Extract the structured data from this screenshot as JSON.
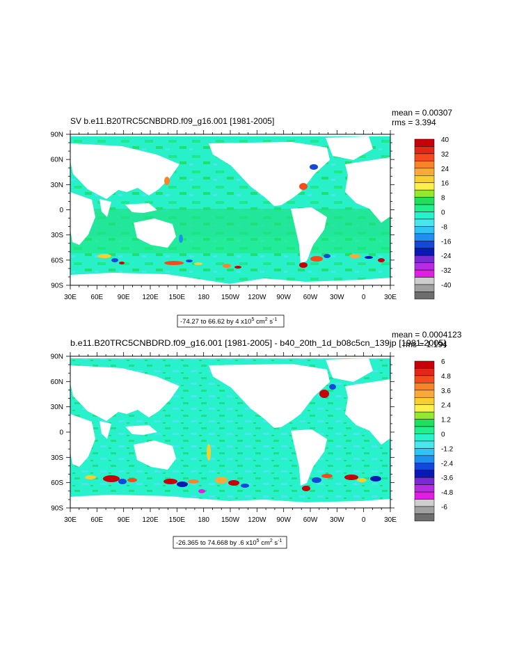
{
  "panels": [
    {
      "title": "SV b.e11.B20TRC5CNBDRD.f09_g16.001 [1981-2005]",
      "mean_text": "mean = 0.00307",
      "rms_text": "rms = 3.394",
      "contour_info": {
        "prefix": "-74.27 to 66.62 by 4 x10",
        "exponent": "5",
        "mid": " cm",
        "exponent2": "2",
        "suffix": " s",
        "exponent3": "-1"
      }
    },
    {
      "title": "b.e11.B20TRC5CNBDRD.f09_g16.001 [1981-2005] - b40_20th_1d_b08c5cn_139jp [1981-2005]",
      "mean_text": "mean = 0.0004123",
      "rms_text": "rms = 1.194",
      "contour_info": {
        "prefix": "-26.365 to 74.668 by .6 x10",
        "exponent": "5",
        "mid": " cm",
        "exponent2": "2",
        "suffix": " s",
        "exponent3": "-1"
      }
    }
  ],
  "chart_data": [
    {
      "type": "heatmap",
      "title": "SV b.e11.B20TRC5CNBDRD.f09_g16.001 [1981-2005]",
      "x_ticks": [
        "30E",
        "60E",
        "90E",
        "120E",
        "150E",
        "180",
        "150W",
        "120W",
        "90W",
        "60W",
        "30W",
        "0",
        "30E"
      ],
      "y_ticks": [
        "90N",
        "60N",
        "30N",
        "0",
        "30S",
        "60S",
        "90S"
      ],
      "xlim": [
        30,
        390
      ],
      "ylim": [
        -90,
        90
      ],
      "colorbar_labels": [
        "40",
        "32",
        "24",
        "16",
        "8",
        "0",
        "-8",
        "-16",
        "-24",
        "-32",
        "-40"
      ],
      "colorbar_colors": [
        "#c8000a",
        "#e22814",
        "#f44a1c",
        "#f8842a",
        "#f9a93a",
        "#f6d02e",
        "#fcf04a",
        "#94e82e",
        "#1ee05a",
        "#1ef08c",
        "#28f2cc",
        "#4ae6f0",
        "#30c4f4",
        "#1e90f0",
        "#1448d8",
        "#0a18b4",
        "#7a2ad2",
        "#b42ee0",
        "#e21ee2",
        "#cecece",
        "#a0a0a0",
        "#6e6e6e"
      ],
      "stats": {
        "mean": 0.00307,
        "rms": 3.394
      },
      "contour_range": {
        "min": -74.27,
        "max": 66.62,
        "interval": 4
      }
    },
    {
      "type": "heatmap",
      "title": "b.e11.B20TRC5CNBDRD.f09_g16.001 [1981-2005] - b40_20th_1d_b08c5cn_139jp [1981-2005]",
      "x_ticks": [
        "30E",
        "60E",
        "90E",
        "120E",
        "150E",
        "180",
        "150W",
        "120W",
        "90W",
        "60W",
        "30W",
        "0",
        "30E"
      ],
      "y_ticks": [
        "90N",
        "60N",
        "30N",
        "0",
        "30S",
        "60S",
        "90S"
      ],
      "xlim": [
        30,
        390
      ],
      "ylim": [
        -90,
        90
      ],
      "colorbar_labels": [
        "6",
        "4.8",
        "3.6",
        "2.4",
        "1.2",
        "0",
        "-1.2",
        "-2.4",
        "-3.6",
        "-4.8",
        "-6"
      ],
      "colorbar_colors": [
        "#c8000a",
        "#e22814",
        "#f44a1c",
        "#f8842a",
        "#f9a93a",
        "#f6d02e",
        "#fcf04a",
        "#94e82e",
        "#1ee05a",
        "#1ef08c",
        "#28f2cc",
        "#4ae6f0",
        "#30c4f4",
        "#1e90f0",
        "#1448d8",
        "#0a18b4",
        "#7a2ad2",
        "#b42ee0",
        "#e21ee2",
        "#cecece",
        "#a0a0a0",
        "#6e6e6e"
      ],
      "stats": {
        "mean": 0.0004123,
        "rms": 1.194
      },
      "contour_range": {
        "min": -26.365,
        "max": 74.668,
        "interval": 0.6
      }
    }
  ]
}
